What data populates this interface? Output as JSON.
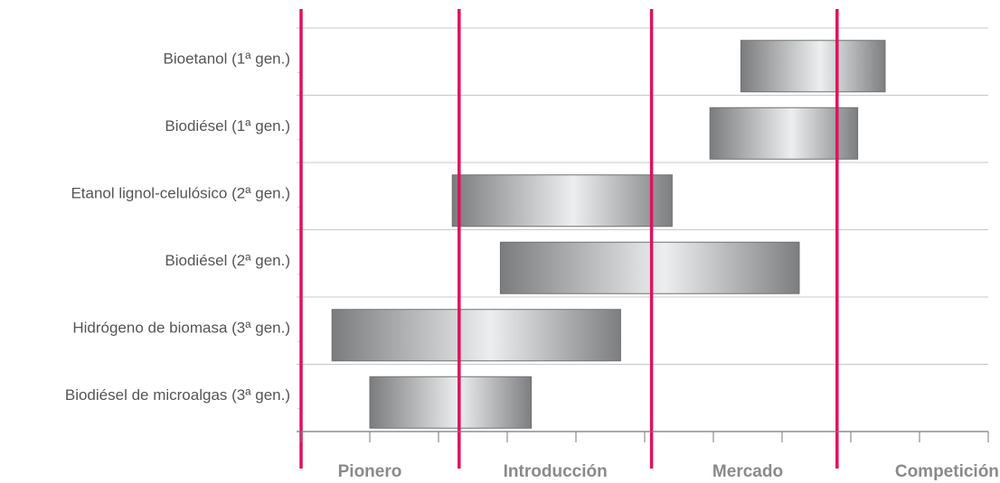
{
  "chart_data": {
    "type": "bar",
    "orientation": "horizontal-range",
    "categories": [
      "Bioetanol (1ª gen.)",
      "Biodiésel (1ª gen.)",
      "Etanol lignol-celulósico (2ª gen.)",
      "Biodiésel (2ª gen.)",
      "Hidrógeno de biomasa (3ª gen.)",
      "Biodiésel de microalgas (3ª gen.)"
    ],
    "ranges": [
      {
        "start": 6.4,
        "end": 8.5
      },
      {
        "start": 5.95,
        "end": 8.1
      },
      {
        "start": 2.2,
        "end": 5.4
      },
      {
        "start": 2.9,
        "end": 7.25
      },
      {
        "start": 0.45,
        "end": 4.65
      },
      {
        "start": 1.0,
        "end": 3.35
      }
    ],
    "xlim": [
      0,
      10
    ],
    "x_ticks": [
      0,
      1,
      2,
      3,
      4,
      5,
      6,
      7,
      8,
      9,
      10
    ],
    "phase_boundaries": [
      0,
      2.3,
      5.1,
      7.8
    ],
    "phases": [
      "Pionero",
      "Introducción",
      "Mercado",
      "Competición"
    ],
    "phase_label_positions": [
      1.0,
      3.7,
      6.5,
      9.4
    ],
    "grid": "horizontal",
    "colors": {
      "boundary_line": "#e0115f",
      "bar_dark": "#7b7c7e",
      "bar_light": "#eceeef",
      "grid": "#c8c8c8",
      "axis": "#777777"
    }
  }
}
